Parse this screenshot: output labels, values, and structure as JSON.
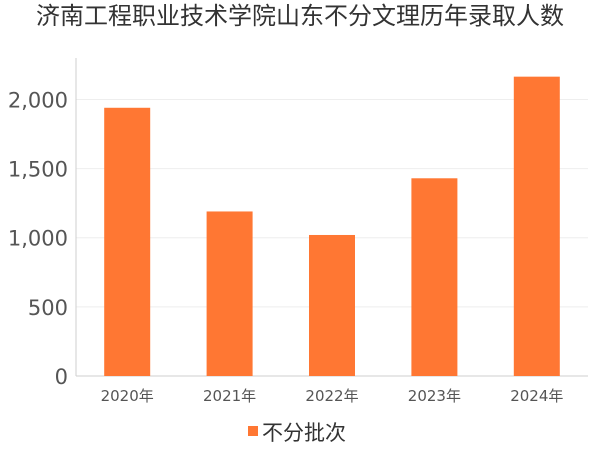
{
  "chart_data": {
    "type": "bar",
    "title": "济南工程职业技术学院山东不分文理历年录取人数",
    "categories": [
      "2020年",
      "2021年",
      "2022年",
      "2023年",
      "2024年"
    ],
    "series": [
      {
        "name": "不分批次",
        "values": [
          1940,
          1190,
          1020,
          1430,
          2165
        ],
        "color": "#FF7733"
      }
    ],
    "ylim": [
      0,
      2300
    ],
    "yticks": [
      0,
      500,
      1000,
      1500,
      2000
    ],
    "ytick_labels": [
      "0",
      "500",
      "1,000",
      "1,500",
      "2,000"
    ],
    "grid": true,
    "legend": "bottom-center"
  }
}
